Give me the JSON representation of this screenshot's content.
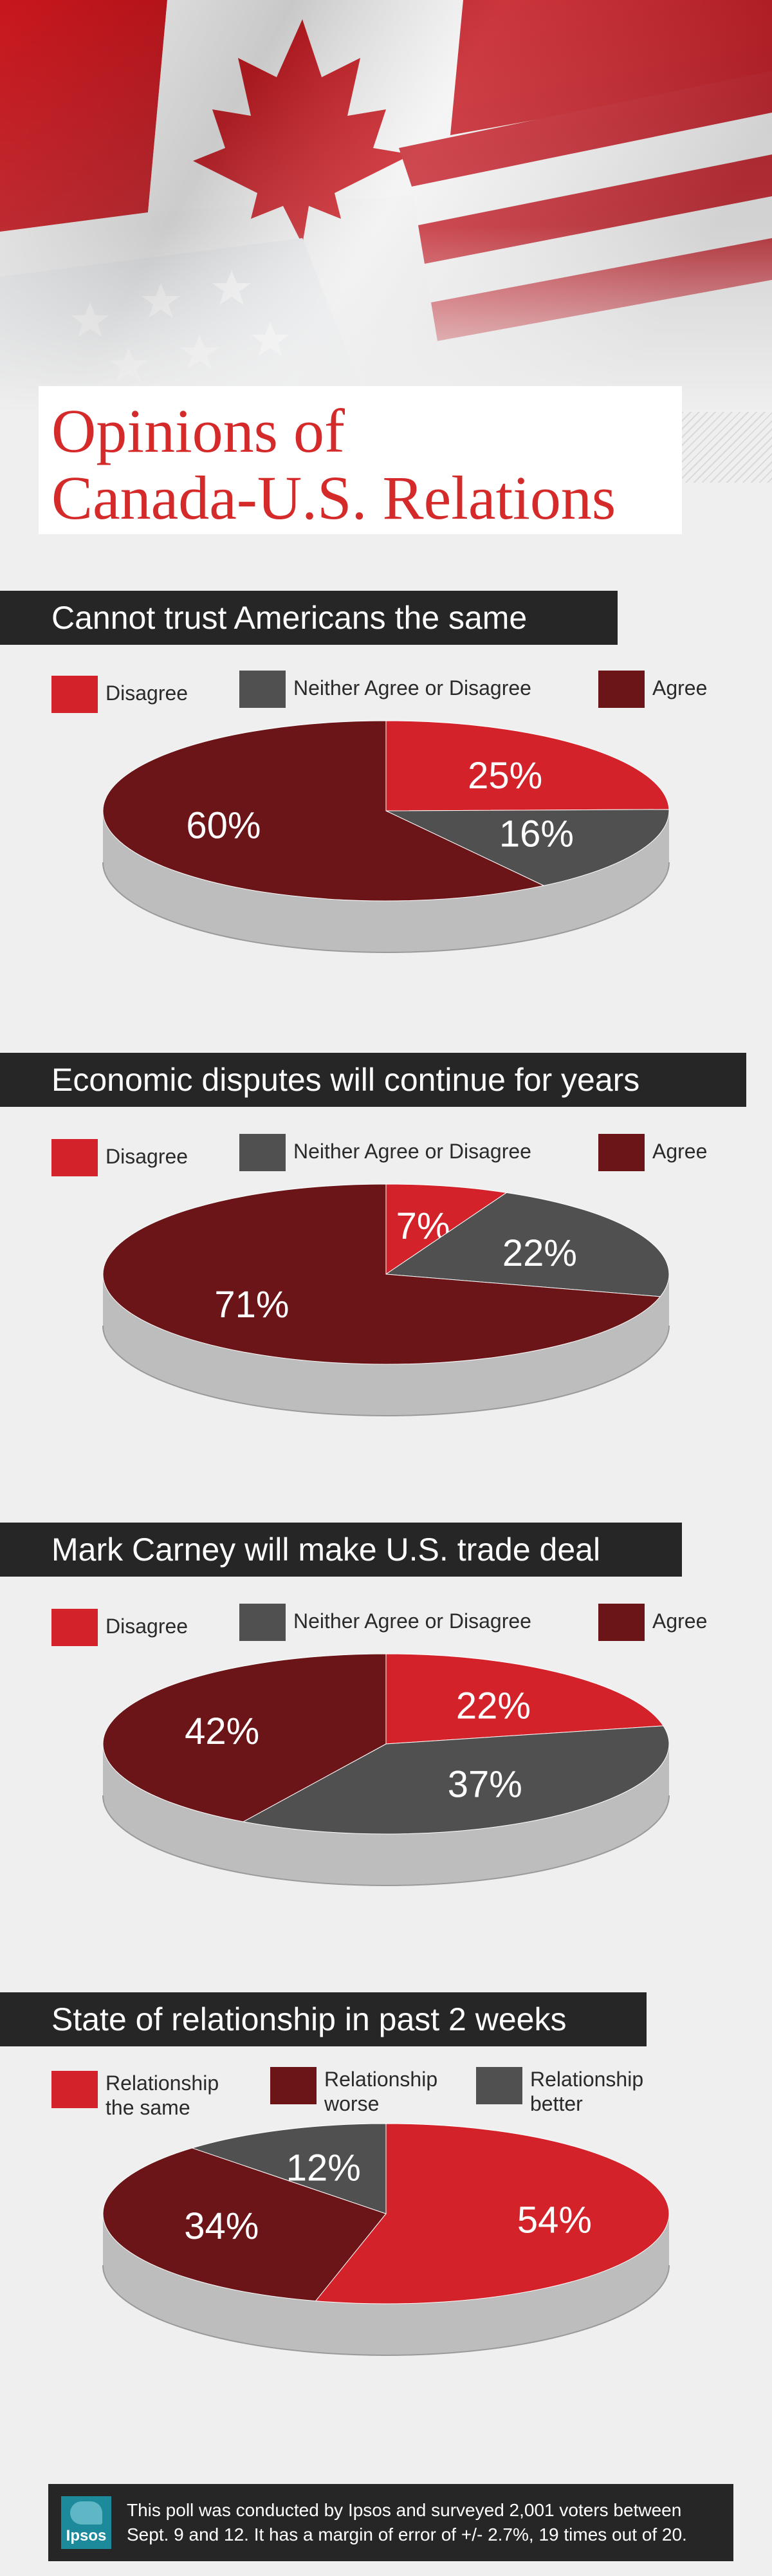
{
  "colors": {
    "disagree": "#d4222a",
    "neutral": "#505050",
    "agree": "#6b1518",
    "title": "#d42a2a",
    "bar": "#262626"
  },
  "title": {
    "line1": "Opinions of",
    "line2": "Canada-U.S. Relations"
  },
  "legend_std": {
    "disagree": "Disagree",
    "neutral": "Neither Agree or Disagree",
    "agree": "Agree"
  },
  "legend_rel": {
    "same_1": "Relationship",
    "same_2": "the same",
    "worse_1": "Relationship",
    "worse_2": "worse",
    "better_1": "Relationship",
    "better_2": "better"
  },
  "chart_data": [
    {
      "type": "pie",
      "title": "Cannot trust Americans the same",
      "categories": [
        "Disagree",
        "Neither Agree or Disagree",
        "Agree"
      ],
      "values": [
        25,
        16,
        60
      ],
      "labels": [
        "25%",
        "16%",
        "60%"
      ],
      "legend_position": "top"
    },
    {
      "type": "pie",
      "title": "Economic disputes will continue for years",
      "categories": [
        "Disagree",
        "Neither Agree or Disagree",
        "Agree"
      ],
      "values": [
        7,
        22,
        71
      ],
      "labels": [
        "7%",
        "22%",
        "71%"
      ],
      "legend_position": "top"
    },
    {
      "type": "pie",
      "title": "Mark Carney will make U.S. trade deal",
      "categories": [
        "Disagree",
        "Neither Agree or Disagree",
        "Agree"
      ],
      "values": [
        22,
        37,
        42
      ],
      "labels": [
        "22%",
        "37%",
        "42%"
      ],
      "legend_position": "top"
    },
    {
      "type": "pie",
      "title": "State of relationship in past 2 weeks",
      "categories": [
        "Relationship the same",
        "Relationship worse",
        "Relationship better"
      ],
      "values": [
        54,
        34,
        12
      ],
      "labels": [
        "54%",
        "34%",
        "12%"
      ],
      "legend_position": "top"
    }
  ],
  "footer": {
    "logo_text": "Ipsos",
    "line1": "This poll was conducted by Ipsos and surveyed 2,001 voters between",
    "line2": "Sept. 9 and 12. It has a margin of error of +/- 2.7%, 19 times out of 20."
  }
}
